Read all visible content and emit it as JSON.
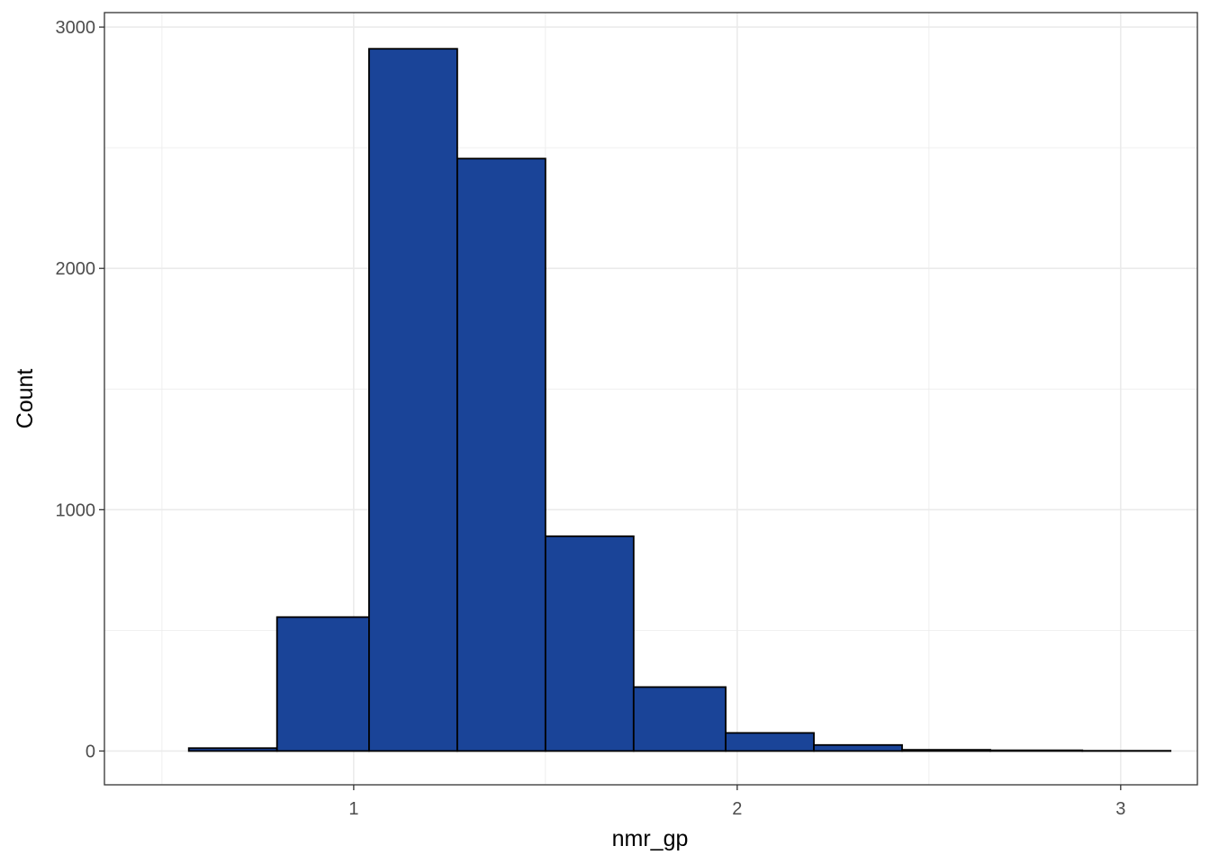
{
  "chart_data": {
    "type": "bar",
    "subtype": "histogram",
    "title": "",
    "xlabel": "nmr_gp",
    "ylabel": "Count",
    "xlim": [
      0.35,
      3.2
    ],
    "ylim": [
      -140,
      3060
    ],
    "x_ticks": [
      1,
      2,
      3
    ],
    "x_tick_labels": [
      "1",
      "2",
      "3"
    ],
    "y_ticks": [
      0,
      1000,
      2000,
      3000
    ],
    "y_tick_labels": [
      "0",
      "1000",
      "2000",
      "3000"
    ],
    "x_minor_ticks": [
      0.5,
      1.5,
      2.5
    ],
    "y_minor_ticks": [
      500,
      1500,
      2500
    ],
    "grid": true,
    "bins": [
      {
        "x0": 0.33,
        "x1": 0.57,
        "count": 0
      },
      {
        "x0": 0.57,
        "x1": 0.8,
        "count": 12
      },
      {
        "x0": 0.8,
        "x1": 1.04,
        "count": 555
      },
      {
        "x0": 1.04,
        "x1": 1.27,
        "count": 2910
      },
      {
        "x0": 1.27,
        "x1": 1.5,
        "count": 2455
      },
      {
        "x0": 1.5,
        "x1": 1.73,
        "count": 890
      },
      {
        "x0": 1.73,
        "x1": 1.97,
        "count": 265
      },
      {
        "x0": 1.97,
        "x1": 2.2,
        "count": 75
      },
      {
        "x0": 2.2,
        "x1": 2.43,
        "count": 25
      },
      {
        "x0": 2.43,
        "x1": 2.66,
        "count": 5
      },
      {
        "x0": 2.66,
        "x1": 2.9,
        "count": 3
      },
      {
        "x0": 2.9,
        "x1": 3.13,
        "count": 1
      }
    ],
    "fill_color": "#1a4498",
    "outline_color": "#000000",
    "panel_border_color": "#333333",
    "grid_color": "#ebebeb"
  }
}
